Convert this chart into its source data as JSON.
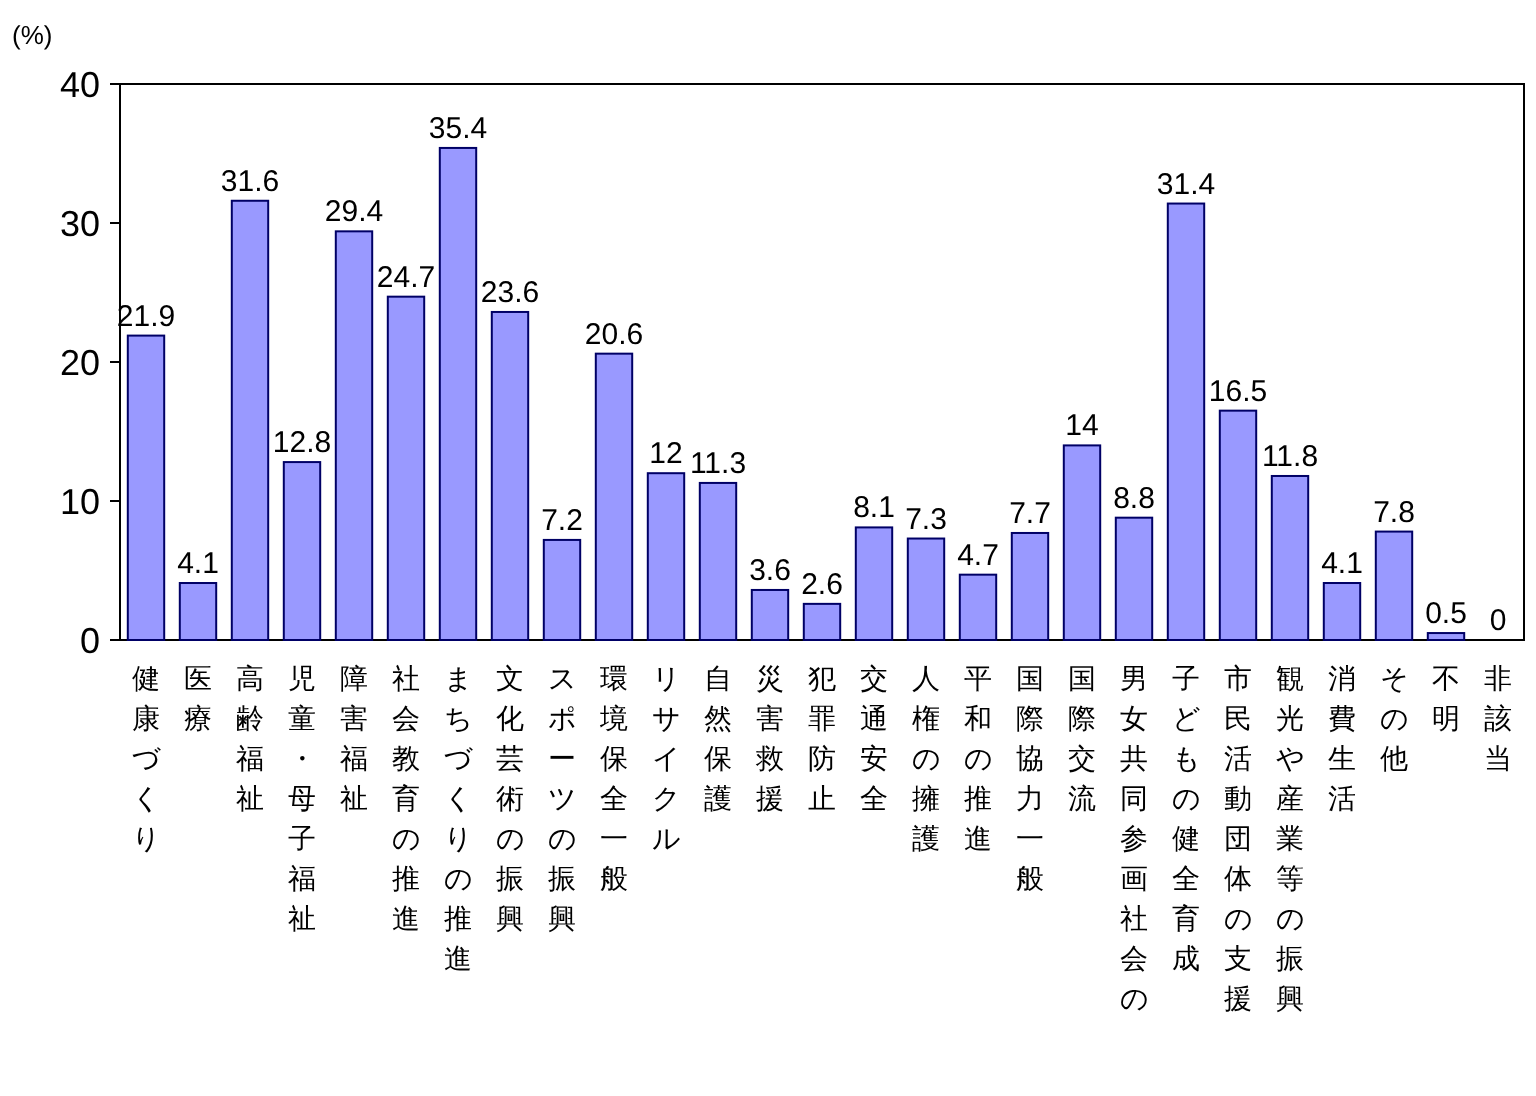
{
  "chart_data": {
    "type": "bar",
    "ylabel": "(%)",
    "categories": [
      "健康づくり",
      "医療",
      "高齢福祉",
      "児童・母子福祉",
      "障害福祉",
      "社会教育の推進",
      "まちづくりの推進",
      "文化芸術の振興",
      "スポーツの振興",
      "環境保全一般",
      "リサイクル",
      "自然保護",
      "災害救援",
      "犯罪防止",
      "交通安全",
      "人権の擁護",
      "平和の推進",
      "国際協力一般",
      "国際交流",
      "男女共同参画社会の",
      "子どもの健全育成",
      "市民活動団体の支援",
      "観光や産業等の振興",
      "消費生活",
      "その他",
      "不明",
      "非該当"
    ],
    "values": [
      21.9,
      4.1,
      31.6,
      12.8,
      29.4,
      24.7,
      35.4,
      23.6,
      7.2,
      20.6,
      12,
      11.3,
      3.6,
      2.6,
      8.1,
      7.3,
      4.7,
      7.7,
      14,
      8.8,
      31.4,
      16.5,
      11.8,
      4.1,
      7.8,
      0.5,
      0
    ],
    "color": "#9999ff",
    "ylim": [
      0,
      40
    ],
    "yticks": [
      0,
      10,
      20,
      30,
      40
    ],
    "data_labels": true
  }
}
